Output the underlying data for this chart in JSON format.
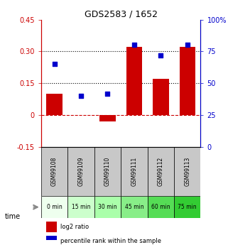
{
  "title": "GDS2583 / 1652",
  "samples": [
    "GSM99108",
    "GSM99109",
    "GSM99110",
    "GSM99111",
    "GSM99112",
    "GSM99113"
  ],
  "time_labels": [
    "0 min",
    "15 min",
    "30 min",
    "45 min",
    "60 min",
    "75 min"
  ],
  "log2_ratio": [
    0.1,
    0.0,
    -0.03,
    0.32,
    0.17,
    0.32
  ],
  "percentile_rank": [
    65,
    40,
    42,
    80,
    72,
    80
  ],
  "ylim_left": [
    -0.15,
    0.45
  ],
  "ylim_right": [
    0,
    100
  ],
  "yticks_left": [
    -0.15,
    0.0,
    0.15,
    0.3,
    0.45
  ],
  "yticks_right": [
    0,
    25,
    50,
    75,
    100
  ],
  "hline_values": [
    0.15,
    0.3
  ],
  "bar_color": "#cc0000",
  "dot_color": "#0000cc",
  "zero_line_color": "#cc0000",
  "grid_line_color": "#000000",
  "left_axis_color": "#cc0000",
  "right_axis_color": "#0000cc",
  "time_colors": [
    "#dfffd f",
    "#ccffcc",
    "#aaffaa",
    "#88ee88",
    "#66dd66",
    "#44cc44"
  ],
  "sample_bg_color": "#c8c8c8",
  "plot_bg_color": "#ffffff",
  "bar_width": 0.6,
  "legend_items": [
    {
      "label": "log2 ratio",
      "color": "#cc0000"
    },
    {
      "label": "percentile rank within the sample",
      "color": "#0000cc"
    }
  ]
}
